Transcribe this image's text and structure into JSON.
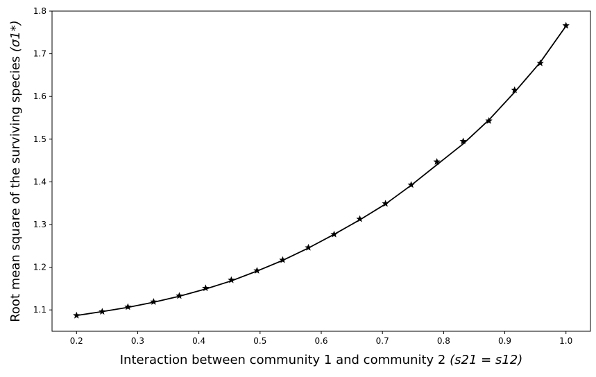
{
  "chart_data": {
    "type": "line",
    "xlabel": "Interaction between community 1 and community 2",
    "xlabel_math": "(s21 = s12)",
    "ylabel": "Root mean square of the surviving species",
    "ylabel_math": "(σ1*)",
    "xlim": [
      0.16,
      1.04
    ],
    "ylim": [
      1.05,
      1.8
    ],
    "x_ticks": [
      "0.2",
      "0.3",
      "0.4",
      "0.5",
      "0.6",
      "0.7",
      "0.8",
      "0.9",
      "1.0"
    ],
    "y_ticks": [
      "1.1",
      "1.2",
      "1.3",
      "1.4",
      "1.5",
      "1.6",
      "1.7",
      "1.8"
    ],
    "grid": false,
    "line_color": "#000000",
    "marker": "star",
    "series": [
      {
        "role": "curve",
        "x": [
          0.2,
          0.242,
          0.284,
          0.326,
          0.368,
          0.411,
          0.453,
          0.495,
          0.537,
          0.579,
          0.621,
          0.663,
          0.705,
          0.747,
          0.789,
          0.832,
          0.874,
          0.916,
          0.958,
          1.0
        ],
        "y": [
          1.087,
          1.096,
          1.106,
          1.118,
          1.132,
          1.149,
          1.168,
          1.191,
          1.216,
          1.245,
          1.277,
          1.311,
          1.348,
          1.392,
          1.44,
          1.489,
          1.545,
          1.61,
          1.68,
          1.765
        ]
      },
      {
        "role": "markers",
        "x": [
          0.2,
          0.242,
          0.284,
          0.326,
          0.368,
          0.411,
          0.453,
          0.495,
          0.537,
          0.579,
          0.621,
          0.663,
          0.705,
          0.747,
          0.789,
          0.832,
          0.874,
          0.916,
          0.958,
          1.0
        ],
        "y": [
          1.087,
          1.096,
          1.107,
          1.119,
          1.133,
          1.151,
          1.17,
          1.192,
          1.217,
          1.246,
          1.277,
          1.313,
          1.349,
          1.393,
          1.447,
          1.495,
          1.543,
          1.615,
          1.678,
          1.766
        ]
      }
    ]
  }
}
